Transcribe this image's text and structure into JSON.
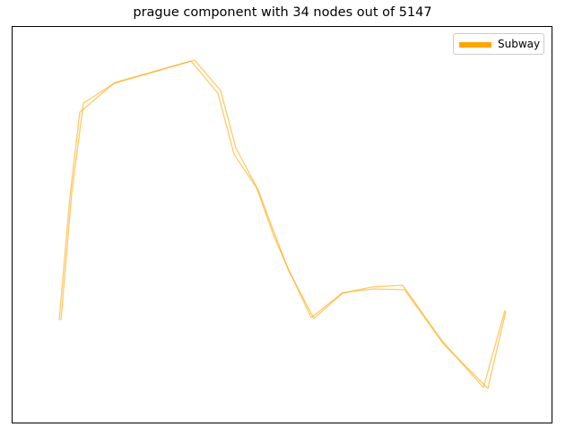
{
  "chart_data": {
    "type": "line",
    "title": "prague component with 34 nodes out of 5147",
    "xlabel": "",
    "ylabel": "",
    "ticks_visible": false,
    "grid": false,
    "legend_position": "top-right",
    "series": [
      {
        "name": "Subway",
        "color": "#FFA500",
        "legend_color": "#FFA500",
        "line_alpha": 0.6,
        "paths": [
          [
            [
              66,
              357
            ],
            [
              78,
              219
            ],
            [
              89,
              125
            ],
            [
              128,
              92
            ],
            [
              213,
              68
            ],
            [
              243,
              104
            ],
            [
              261,
              172
            ],
            [
              286,
              209
            ],
            [
              306,
              265
            ],
            [
              323,
              303
            ],
            [
              347,
              354
            ],
            [
              381,
              327
            ],
            [
              414,
              320
            ],
            [
              449,
              318
            ],
            [
              493,
              380
            ],
            [
              539,
              432
            ],
            [
              563,
              346
            ]
          ],
          [
            [
              68,
              357
            ],
            [
              80,
              215
            ],
            [
              93,
              115
            ],
            [
              127,
              93
            ],
            [
              217,
              67
            ],
            [
              246,
              101
            ],
            [
              263,
              165
            ],
            [
              288,
              212
            ],
            [
              307,
              263
            ],
            [
              322,
              302
            ],
            [
              350,
              355
            ],
            [
              383,
              326
            ],
            [
              416,
              322
            ],
            [
              451,
              323
            ],
            [
              495,
              384
            ],
            [
              544,
              433
            ],
            [
              564,
              347
            ]
          ]
        ]
      }
    ]
  }
}
